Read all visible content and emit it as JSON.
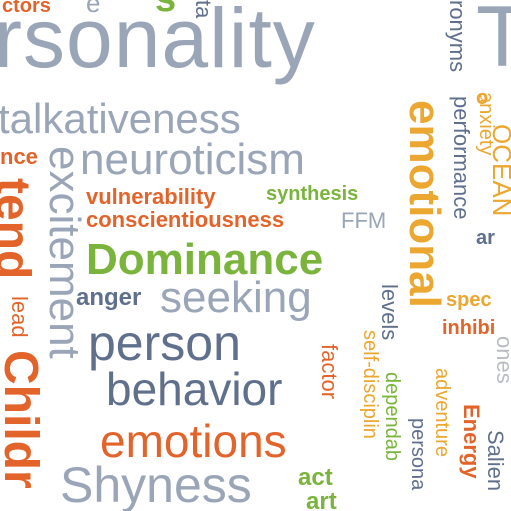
{
  "colors": {
    "slate": "#5f6f8c",
    "light_slate": "#9aa6b8",
    "orange": "#e3642b",
    "amber": "#eba72f",
    "green": "#7ab43c",
    "gray": "#b9bdc3"
  },
  "words": {
    "ctors": "ctors",
    "e": "e",
    "s": "s",
    "ta": "ta",
    "rsonality": "rsonality",
    "T": "T",
    "talkativeness": "talkativeness",
    "nce": "nce",
    "neuroticism": "neuroticism",
    "vulnerability": "vulnerability",
    "synthesis": "synthesis",
    "conscientiousness": "conscientiousness",
    "FFM": "FFM",
    "Dominance": "Dominance",
    "anger": "anger",
    "seeking": "seeking",
    "person": "person",
    "behavior": "behavior",
    "emotions": "emotions",
    "Shyness": "Shyness",
    "act": "act",
    "art": "art",
    "spec": "spec",
    "inhibi": "inhibi",
    "ar": "ar",
    "excitement": "excitement",
    "tend": "tend",
    "lead": "lead",
    "Childr": "Childr",
    "emotional": "emotional",
    "performance": "performance",
    "ronyms": "ronyms",
    "anxiety": "anxiety",
    "o": "o",
    "OCEAN": "OCEAN",
    "levels": "levels",
    "factor": "factor",
    "self-disciplin": "self-disciplin",
    "dependab": "dependab",
    "adventure": "adventure",
    "persona": "persona",
    "Energy": "Energy",
    "Salien": "Salien",
    "ones": "ones"
  }
}
